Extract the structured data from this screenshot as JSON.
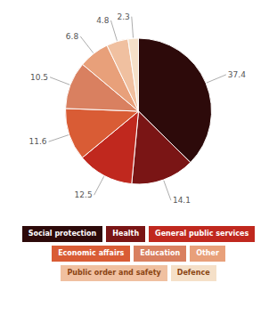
{
  "chart_data": {
    "type": "pie",
    "categories": [
      "Social protection",
      "Health",
      "General public services",
      "Economic affairs",
      "Education",
      "Other",
      "Public order and safety",
      "Defence"
    ],
    "values": [
      37.4,
      14.1,
      12.5,
      11.6,
      10.5,
      6.8,
      4.8,
      2.3
    ],
    "colors": [
      "#2d0a0a",
      "#7a1515",
      "#c0281e",
      "#d95c35",
      "#d98060",
      "#e8a07a",
      "#f0c0a0",
      "#f5e0c8"
    ],
    "data_labels": true,
    "legend": "bottom"
  }
}
